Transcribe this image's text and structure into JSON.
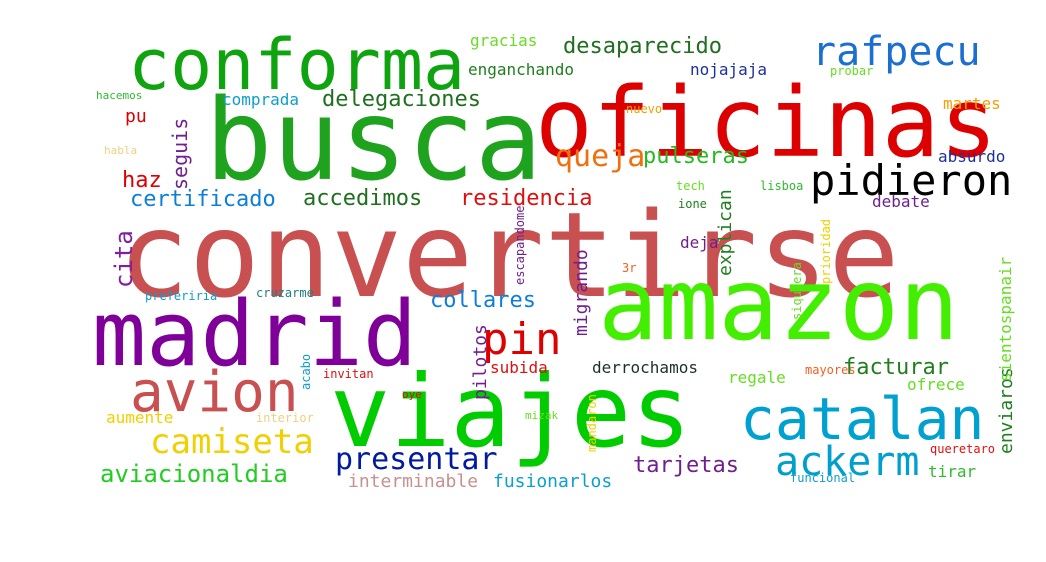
{
  "words": [
    {
      "text": "convertirse",
      "color": "#c85050"
    },
    {
      "text": "busca",
      "color": "#1fa31f"
    },
    {
      "text": "oficinas",
      "color": "#dd0000"
    },
    {
      "text": "amazon",
      "color": "#44ee00"
    },
    {
      "text": "viajes",
      "color": "#00cc00"
    },
    {
      "text": "madrid",
      "color": "#7f0099"
    },
    {
      "text": "conforma",
      "color": "#0fa30f"
    },
    {
      "text": "catalan",
      "color": "#00a0d0"
    },
    {
      "text": "avion",
      "color": "#c85050"
    },
    {
      "text": "pidieron",
      "color": "#000000"
    },
    {
      "text": "rafpecu",
      "color": "#1a6fd0"
    },
    {
      "text": "pin",
      "color": "#dd0000"
    },
    {
      "text": "ackerm",
      "color": "#009fcc"
    },
    {
      "text": "camiseta",
      "color": "#f0d000"
    },
    {
      "text": "presentar",
      "color": "#001aa0"
    },
    {
      "text": "queja",
      "color": "#f07010"
    },
    {
      "text": "aviacionaldia",
      "color": "#22cc22"
    },
    {
      "text": "delegaciones",
      "color": "#1f6f1f"
    },
    {
      "text": "desaparecido",
      "color": "#1f6f1f"
    },
    {
      "text": "accedimos",
      "color": "#1f6f1f"
    },
    {
      "text": "certificado",
      "color": "#0d7fd8"
    },
    {
      "text": "residencia",
      "color": "#dd1010"
    },
    {
      "text": "pulseras",
      "color": "#22bb22"
    },
    {
      "text": "collares",
      "color": "#0d7fd8"
    },
    {
      "text": "tarjetas",
      "color": "#6f1f8f"
    },
    {
      "text": "facturar",
      "color": "#1f7f1f"
    },
    {
      "text": "haz",
      "color": "#dd0000"
    },
    {
      "text": "cita",
      "color": "#7f1f9f"
    },
    {
      "text": "seguis",
      "color": "#6f1f8f"
    },
    {
      "text": "gracias",
      "color": "#66dd22"
    },
    {
      "text": "enganchando",
      "color": "#1f7f1f"
    },
    {
      "text": "nojajaja",
      "color": "#1f2fa0"
    },
    {
      "text": "comprada",
      "color": "#0d9fcc"
    },
    {
      "text": "pu",
      "color": "#dd0000"
    },
    {
      "text": "hacemos",
      "color": "#2fbb2f"
    },
    {
      "text": "habla",
      "color": "#f0d080"
    },
    {
      "text": "absurdo",
      "color": "#1f2fa0"
    },
    {
      "text": "debate",
      "color": "#6f1f8f"
    },
    {
      "text": "martes",
      "color": "#f0a000"
    },
    {
      "text": "probar",
      "color": "#66dd22"
    },
    {
      "text": "nuevo",
      "color": "#f0a000"
    },
    {
      "text": "tech",
      "color": "#66dd22"
    },
    {
      "text": "ione",
      "color": "#1f7f1f"
    },
    {
      "text": "lisboa",
      "color": "#2fbb2f"
    },
    {
      "text": "deja",
      "color": "#6f1f8f"
    },
    {
      "text": "explican",
      "color": "#1f7f1f"
    },
    {
      "text": "migrando",
      "color": "#6f1f8f"
    },
    {
      "text": "subida",
      "color": "#dd1010"
    },
    {
      "text": "derrochamos",
      "color": "#1f2f2f"
    },
    {
      "text": "regale",
      "color": "#66dd22"
    },
    {
      "text": "mayores",
      "color": "#f06020"
    },
    {
      "text": "ofrece",
      "color": "#66dd22"
    },
    {
      "text": "enviaros",
      "color": "#1f7f1f"
    },
    {
      "text": "sientospanair",
      "color": "#66dd22"
    },
    {
      "text": "prioridad",
      "color": "#f0d000"
    },
    {
      "text": "siquiera",
      "color": "#66dd22"
    },
    {
      "text": "escapandome",
      "color": "#6f1f8f"
    },
    {
      "text": "3r",
      "color": "#f06020"
    },
    {
      "text": "pilotos",
      "color": "#6f1f8f"
    },
    {
      "text": "preferiria",
      "color": "#0d9fcc"
    },
    {
      "text": "cruzarme",
      "color": "#1f7f7f"
    },
    {
      "text": "acabo",
      "color": "#0d9fcc"
    },
    {
      "text": "invitan",
      "color": "#dd1010"
    },
    {
      "text": "oye",
      "color": "#dd1010"
    },
    {
      "text": "aumente",
      "color": "#f0d000"
    },
    {
      "text": "interior",
      "color": "#f0d080"
    },
    {
      "text": "mizak",
      "color": "#66dd22"
    },
    {
      "text": "mandaron",
      "color": "#f0d000"
    },
    {
      "text": "interminable",
      "color": "#c89090"
    },
    {
      "text": "fusionarlos",
      "color": "#0d9fcc"
    },
    {
      "text": "queretaro",
      "color": "#dd1010"
    },
    {
      "text": "tirar",
      "color": "#2fbb2f"
    },
    {
      "text": "funcional",
      "color": "#0d9fcc"
    }
  ]
}
